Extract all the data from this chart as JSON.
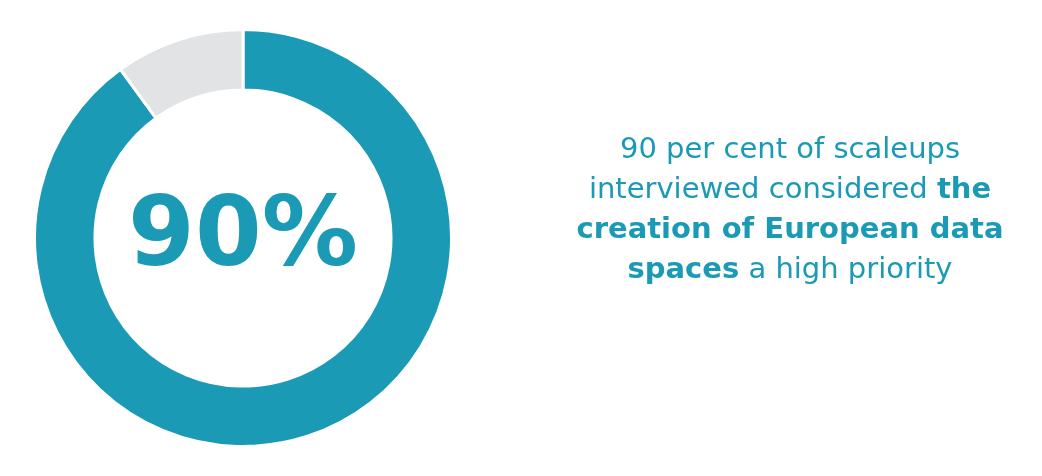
{
  "chart_data": {
    "type": "donut",
    "categories": [
      null,
      null
    ],
    "values": [
      90,
      10
    ],
    "colors": [
      "#1a9ab5",
      "#e2e3e5"
    ],
    "annotations": [
      "90%",
      "90 per cent of scaleups interviewed considered",
      "the creation of European data spaces",
      "a high priority"
    ]
  }
}
